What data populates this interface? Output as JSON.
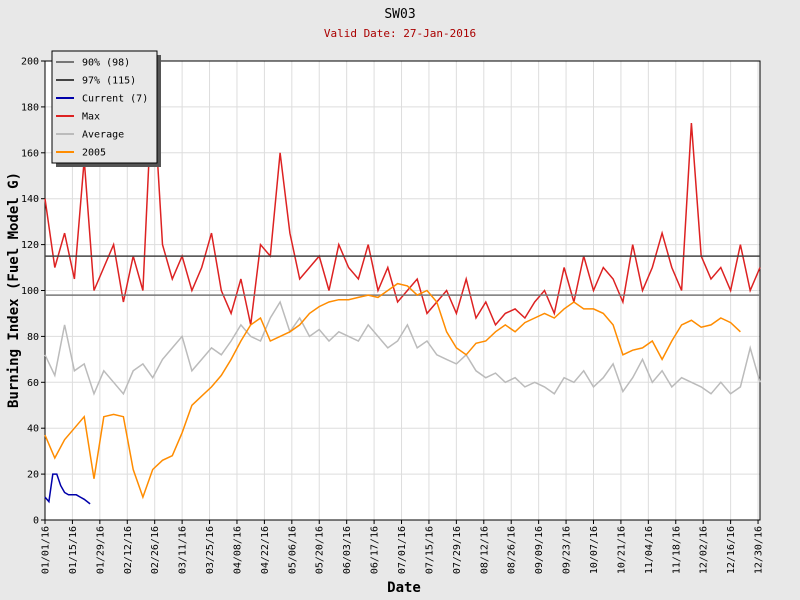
{
  "chart_data": {
    "type": "line",
    "title": "SW03",
    "subtitle": "Valid Date: 27-Jan-2016",
    "xlabel": "Date",
    "ylabel": "Burning Index (Fuel Model G)",
    "xlim": [
      "01/01/16",
      "12/31/16"
    ],
    "ylim": [
      0,
      200
    ],
    "yticks": [
      0,
      20,
      40,
      60,
      80,
      100,
      120,
      140,
      160,
      180,
      200
    ],
    "xticks": [
      "01/01/16",
      "01/15/16",
      "01/29/16",
      "02/12/16",
      "02/26/16",
      "03/11/16",
      "03/25/16",
      "04/08/16",
      "04/22/16",
      "05/06/16",
      "05/20/16",
      "06/03/16",
      "06/17/16",
      "07/01/16",
      "07/15/16",
      "07/29/16",
      "08/12/16",
      "08/26/16",
      "09/09/16",
      "09/23/16",
      "10/07/16",
      "10/21/16",
      "11/04/16",
      "11/18/16",
      "12/02/16",
      "12/16/16",
      "12/30/16"
    ],
    "grid": true,
    "legend": "top-left",
    "x": [
      "01/01/16",
      "01/06/16",
      "01/11/16",
      "01/16/16",
      "01/21/16",
      "01/26/16",
      "01/31/16",
      "02/05/16",
      "02/10/16",
      "02/15/16",
      "02/20/16",
      "02/25/16",
      "03/01/16",
      "03/06/16",
      "03/11/16",
      "03/16/16",
      "03/21/16",
      "03/26/16",
      "03/31/16",
      "04/05/16",
      "04/10/16",
      "04/15/16",
      "04/20/16",
      "04/25/16",
      "04/30/16",
      "05/05/16",
      "05/10/16",
      "05/15/16",
      "05/20/16",
      "05/25/16",
      "05/30/16",
      "06/04/16",
      "06/09/16",
      "06/14/16",
      "06/19/16",
      "06/24/16",
      "06/29/16",
      "07/04/16",
      "07/09/16",
      "07/14/16",
      "07/19/16",
      "07/24/16",
      "07/29/16",
      "08/03/16",
      "08/08/16",
      "08/13/16",
      "08/18/16",
      "08/23/16",
      "08/28/16",
      "09/02/16",
      "09/07/16",
      "09/12/16",
      "09/17/16",
      "09/22/16",
      "09/27/16",
      "10/02/16",
      "10/07/16",
      "10/12/16",
      "10/17/16",
      "10/22/16",
      "10/27/16",
      "11/01/16",
      "11/06/16",
      "11/11/16",
      "11/16/16",
      "11/21/16",
      "11/26/16",
      "12/01/16",
      "12/06/16",
      "12/11/16",
      "12/16/16",
      "12/21/16",
      "12/26/16",
      "12/31/16"
    ],
    "series": [
      {
        "name": "90% (98)",
        "color": "#777777",
        "value": 98
      },
      {
        "name": "97% (115)",
        "color": "#444444",
        "value": 115
      },
      {
        "name": "Current (7)",
        "color": "#0000aa",
        "x": [
          "01/01/16",
          "01/03/16",
          "01/05/16",
          "01/07/16",
          "01/09/16",
          "01/11/16",
          "01/13/16",
          "01/17/16",
          "01/19/16",
          "01/21/16",
          "01/24/16"
        ],
        "values": [
          10,
          8,
          20,
          20,
          15,
          12,
          11,
          11,
          10,
          9,
          7
        ]
      },
      {
        "name": "Max",
        "color": "#dd2222",
        "values": [
          140,
          110,
          125,
          105,
          157,
          100,
          110,
          120,
          95,
          115,
          100,
          192,
          120,
          105,
          115,
          100,
          110,
          125,
          100,
          90,
          105,
          85,
          120,
          115,
          160,
          125,
          105,
          110,
          115,
          100,
          120,
          110,
          105,
          120,
          100,
          110,
          95,
          100,
          105,
          90,
          95,
          100,
          90,
          105,
          88,
          95,
          85,
          90,
          92,
          88,
          95,
          100,
          90,
          110,
          95,
          115,
          100,
          110,
          105,
          95,
          120,
          100,
          110,
          125,
          110,
          100,
          173,
          115,
          105,
          110,
          100,
          120,
          100,
          110
        ]
      },
      {
        "name": "Average",
        "color": "#bbbbbb",
        "values": [
          72,
          63,
          85,
          65,
          68,
          55,
          65,
          60,
          55,
          65,
          68,
          62,
          70,
          75,
          80,
          65,
          70,
          75,
          72,
          78,
          85,
          80,
          78,
          88,
          95,
          82,
          88,
          80,
          83,
          78,
          82,
          80,
          78,
          85,
          80,
          75,
          78,
          85,
          75,
          78,
          72,
          70,
          68,
          72,
          65,
          62,
          64,
          60,
          62,
          58,
          60,
          58,
          55,
          62,
          60,
          65,
          58,
          62,
          68,
          56,
          62,
          70,
          60,
          65,
          58,
          62,
          60,
          58,
          55,
          60,
          55,
          58,
          75,
          60
        ]
      },
      {
        "name": "2005",
        "color": "#ff8c00",
        "values": [
          37,
          27,
          35,
          40,
          45,
          18,
          45,
          46,
          45,
          22,
          10,
          22,
          26,
          28,
          38,
          50,
          54,
          58,
          63,
          70,
          78,
          85,
          88,
          78,
          80,
          82,
          85,
          90,
          93,
          95,
          96,
          96,
          97,
          98,
          97,
          100,
          103,
          102,
          98,
          100,
          95,
          82,
          75,
          72,
          77,
          78,
          82,
          85,
          82,
          86,
          88,
          90,
          88,
          92,
          95,
          92,
          92,
          90,
          85,
          72,
          74,
          75,
          78,
          70,
          78,
          85,
          87,
          84,
          85,
          88,
          86,
          82,
          null,
          null
        ]
      }
    ]
  }
}
